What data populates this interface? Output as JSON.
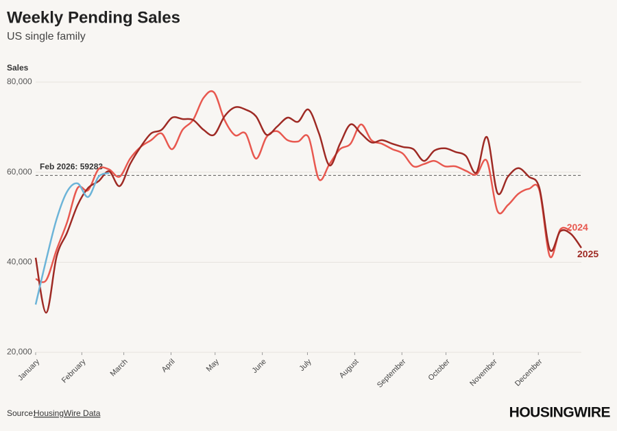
{
  "chart_data": {
    "type": "line",
    "title": "Weekly Pending Sales",
    "subtitle": "US single family",
    "y_label": "Sales",
    "source_prefix": "Source:",
    "source_link": "HousingWire Data",
    "brand": "HOUSINGWIRE",
    "xlim": [
      0,
      52
    ],
    "xticks": [
      {
        "value": 0,
        "label": "January"
      },
      {
        "value": 4.4,
        "label": "February"
      },
      {
        "value": 8.4,
        "label": "March"
      },
      {
        "value": 12.9,
        "label": "April"
      },
      {
        "value": 17.1,
        "label": "May"
      },
      {
        "value": 21.6,
        "label": "June"
      },
      {
        "value": 25.9,
        "label": "July"
      },
      {
        "value": 30.4,
        "label": "August"
      },
      {
        "value": 34.9,
        "label": "September"
      },
      {
        "value": 39.1,
        "label": "October"
      },
      {
        "value": 43.6,
        "label": "November"
      },
      {
        "value": 47.9,
        "label": "December"
      }
    ],
    "ylim": [
      20000,
      80000
    ],
    "yticks": [
      {
        "value": 20000,
        "label": "20,000"
      },
      {
        "value": 40000,
        "label": "40,000"
      },
      {
        "value": 60000,
        "label": "60,000"
      },
      {
        "value": 80000,
        "label": "80,000"
      }
    ],
    "grid": true,
    "x": [
      0,
      1,
      2,
      3,
      4,
      5,
      6,
      7,
      8,
      9,
      10,
      11,
      12,
      13,
      14,
      15,
      16,
      17,
      18,
      19,
      20,
      21,
      22,
      23,
      24,
      25,
      26,
      27,
      28,
      29,
      30,
      31,
      32,
      33,
      34,
      35,
      36,
      37,
      38,
      39,
      40,
      41,
      42,
      43,
      44,
      45,
      46,
      47,
      48,
      49,
      50,
      51,
      52
    ],
    "series": [
      {
        "name": "2024",
        "color": "#e8584f",
        "values": [
          36300,
          36000,
          42800,
          48900,
          56500,
          56000,
          60700,
          60600,
          59000,
          63000,
          65600,
          67100,
          68600,
          65100,
          69400,
          71600,
          76500,
          77700,
          71600,
          68200,
          68600,
          63000,
          67800,
          69100,
          67100,
          66800,
          67800,
          58400,
          61800,
          65100,
          66300,
          70600,
          67100,
          66300,
          65100,
          64100,
          61300,
          61800,
          62500,
          61300,
          61300,
          60300,
          59500,
          62500,
          51400,
          52700,
          55200,
          56300,
          56000,
          41300,
          47300,
          47000,
          null
        ]
      },
      {
        "name": "2025",
        "color": "#9e2a24",
        "values": [
          41000,
          28800,
          41300,
          46600,
          52700,
          56500,
          58000,
          60200,
          56900,
          61800,
          65600,
          68600,
          69400,
          72100,
          71800,
          71600,
          69400,
          68300,
          72400,
          74400,
          73900,
          72400,
          68300,
          70100,
          72100,
          71200,
          73900,
          68600,
          61500,
          66300,
          70600,
          68600,
          66600,
          67100,
          66300,
          65600,
          65100,
          62500,
          64800,
          65300,
          64500,
          63600,
          59900,
          67800,
          55400,
          59000,
          60900,
          59000,
          56500,
          42800,
          46900,
          46300,
          43200
        ]
      },
      {
        "color": "#6cb4d8",
        "values": [
          30600,
          40500,
          49600,
          55700,
          57500,
          54500,
          59000,
          59800,
          null,
          null,
          null,
          null,
          null,
          null,
          null,
          null,
          null,
          null,
          null,
          null,
          null,
          null,
          null,
          null,
          null,
          null,
          null,
          null,
          null,
          null,
          null,
          null,
          null,
          null,
          null,
          null,
          null,
          null,
          null,
          null,
          null,
          null,
          null,
          null,
          null,
          null,
          null,
          null,
          null,
          null,
          null,
          null,
          null
        ]
      }
    ],
    "reference_line": {
      "value": 59283,
      "label": "Feb 2026: 59283"
    }
  }
}
